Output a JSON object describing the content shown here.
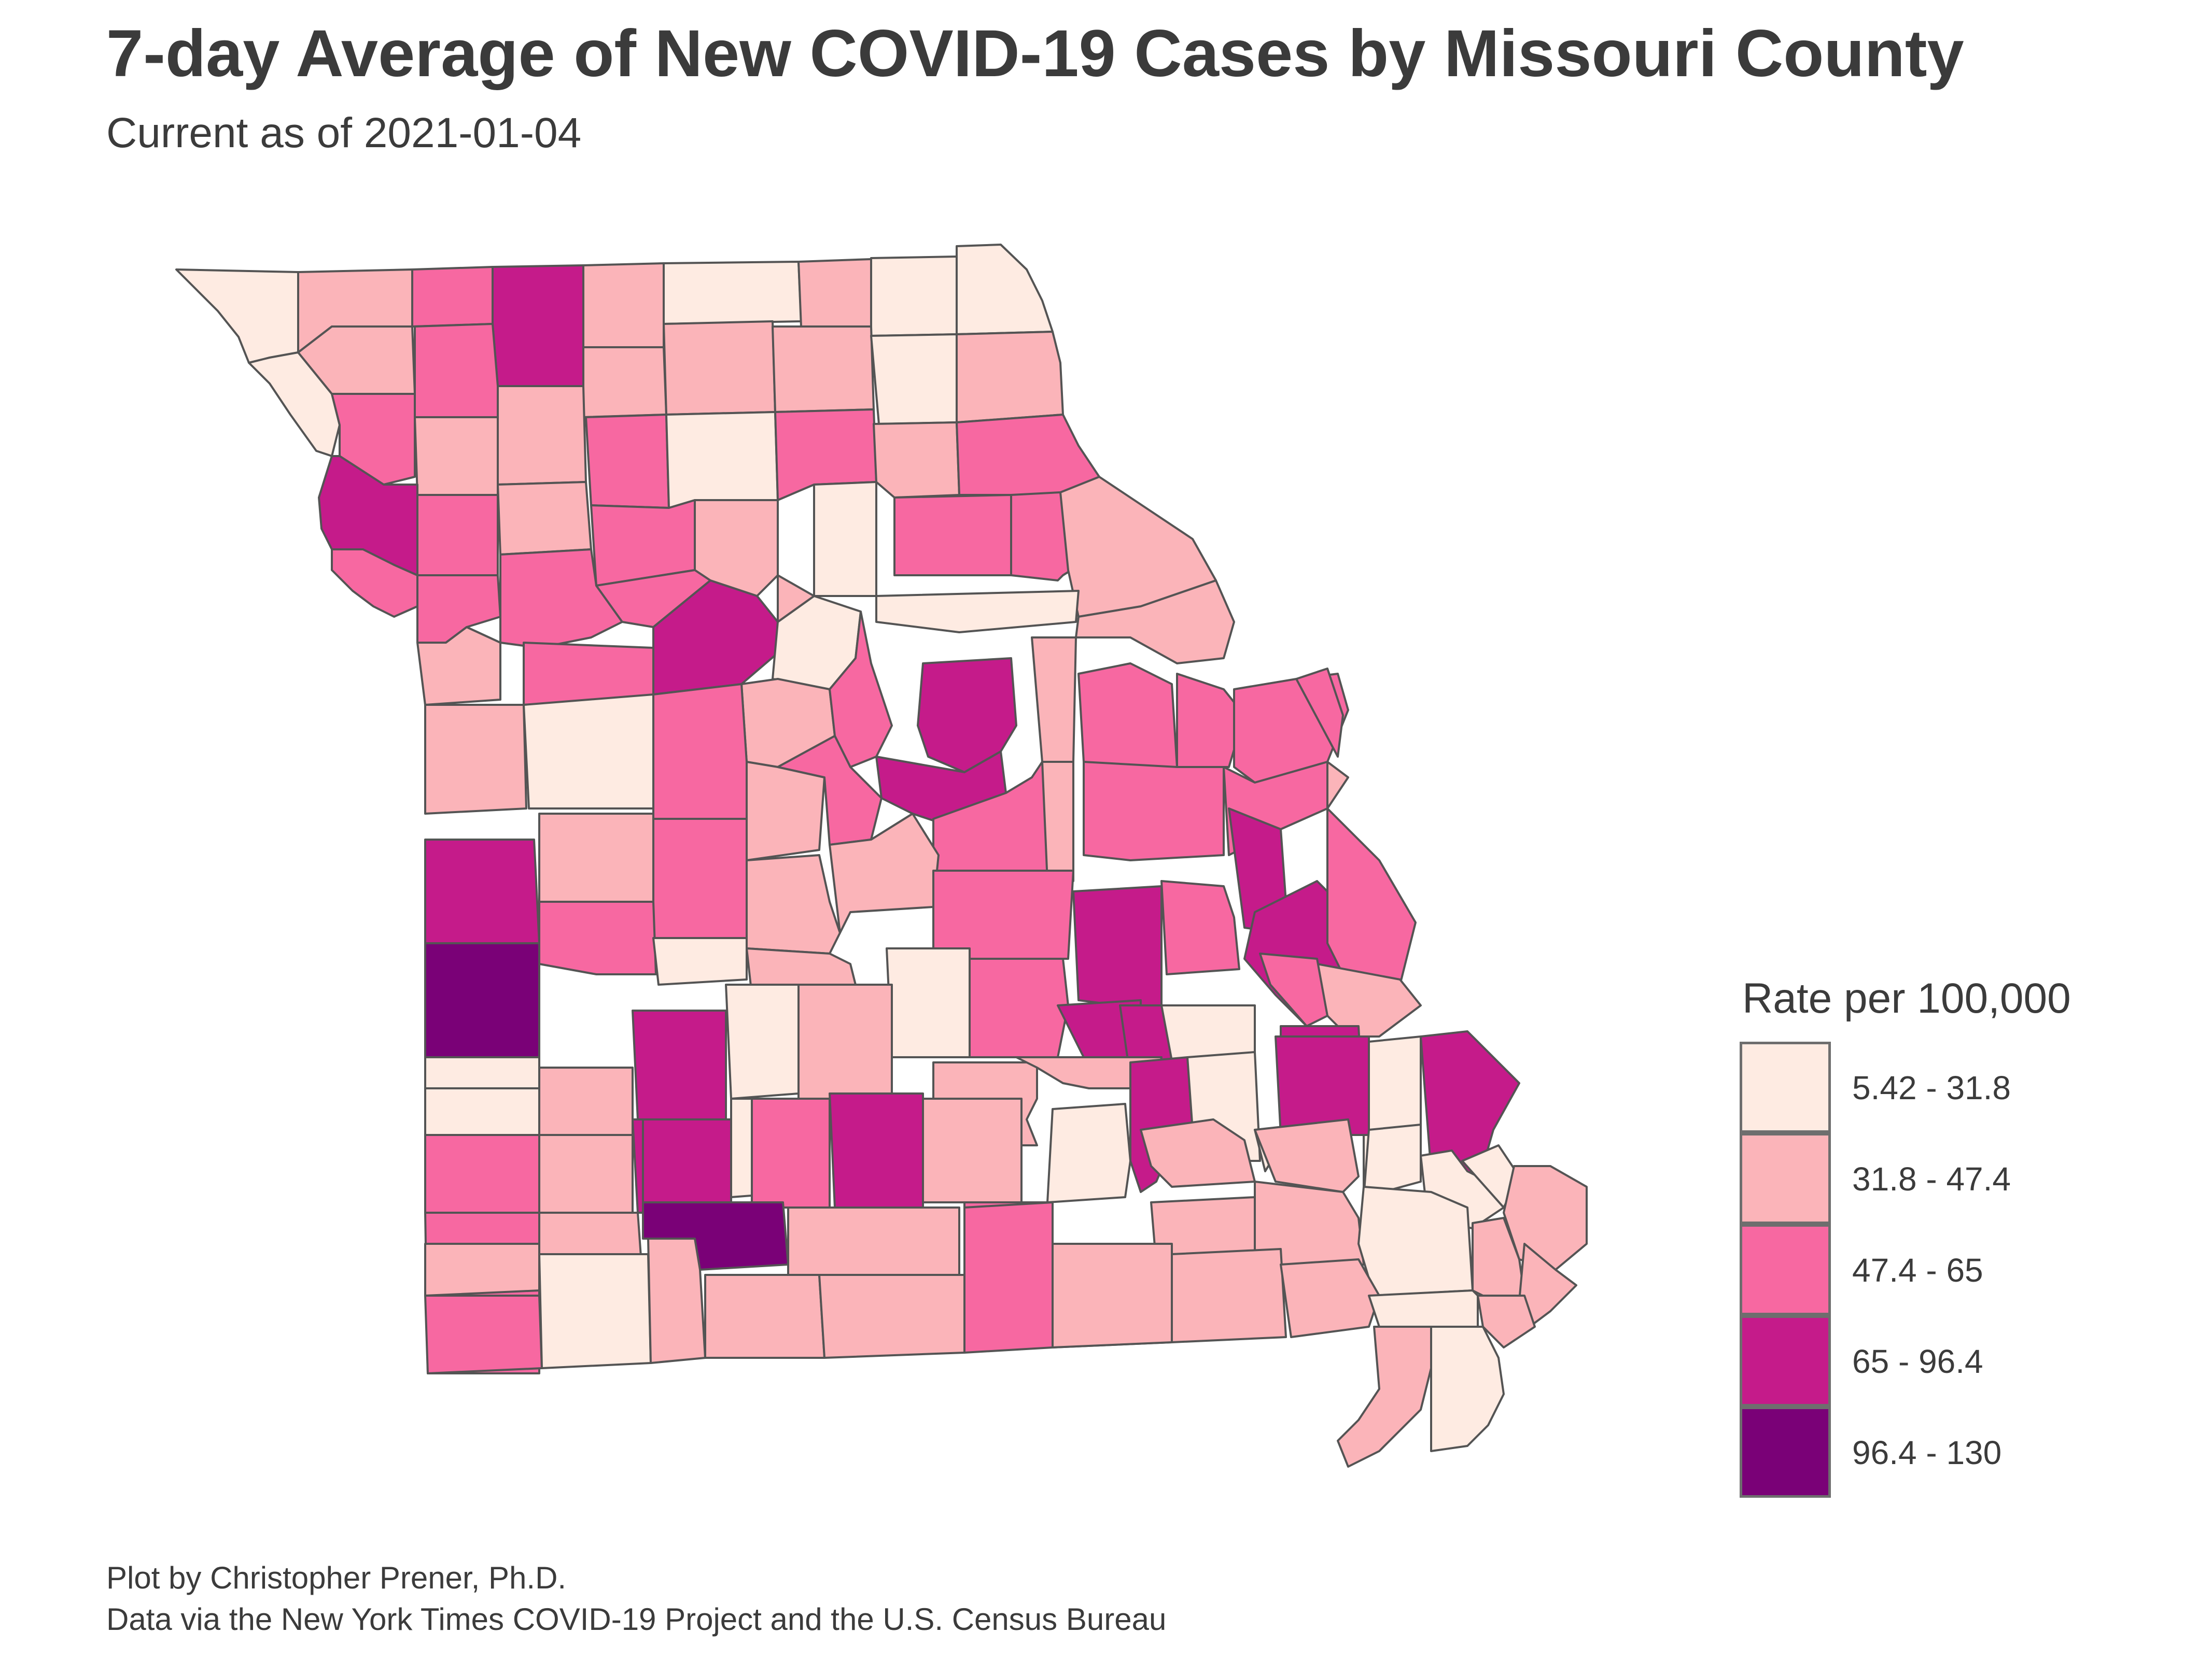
{
  "title": "7-day Average of New COVID-19 Cases by Missouri County",
  "subtitle": "Current as of 2021-01-04",
  "legend": {
    "title": "Rate per 100,000",
    "items": [
      {
        "label": "5.42 - 31.8",
        "color": "#FEEBE2"
      },
      {
        "label": "31.8 - 47.4",
        "color": "#FBB4B9"
      },
      {
        "label": "47.4 - 65",
        "color": "#F768A1"
      },
      {
        "label": "65 - 96.4",
        "color": "#C51B8A"
      },
      {
        "label": "96.4 - 130",
        "color": "#7A0177"
      }
    ]
  },
  "caption": {
    "line1": "Plot by Christopher Prener, Ph.D.",
    "line2": "Data via the New York Times COVID-19 Project and the U.S. Census Bureau"
  },
  "map": {
    "state": "Missouri",
    "border_color": "#545454"
  }
}
